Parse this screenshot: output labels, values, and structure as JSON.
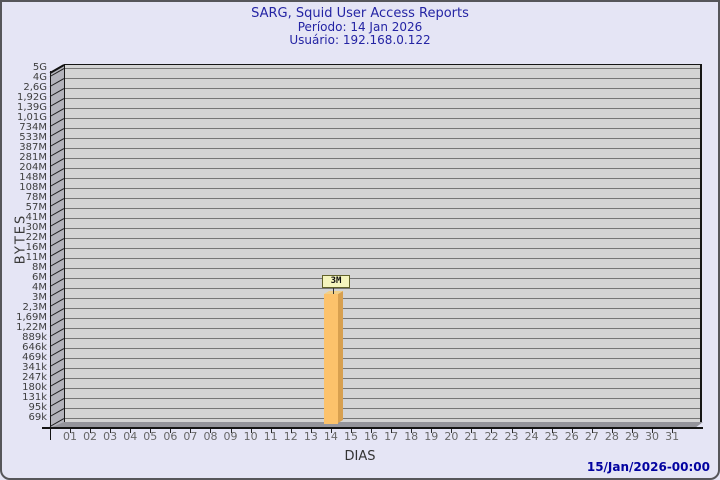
{
  "chart_data": {
    "type": "bar",
    "title": "SARG, Squid User Access Reports",
    "subtitle_period": "Período: 14 Jan 2026",
    "subtitle_user": "Usuário: 192.168.0.122",
    "x_axis_title": "DIAS",
    "y_axis_title": "BYTES",
    "timestamp": "15/Jan/2026-00:00",
    "categories": [
      "01",
      "02",
      "03",
      "04",
      "05",
      "06",
      "07",
      "08",
      "09",
      "10",
      "11",
      "12",
      "13",
      "14",
      "15",
      "16",
      "17",
      "18",
      "19",
      "20",
      "21",
      "22",
      "23",
      "24",
      "25",
      "26",
      "27",
      "28",
      "29",
      "30",
      "31"
    ],
    "y_ticks": [
      "5G",
      "4G",
      "2,6G",
      "1,92G",
      "1,39G",
      "1,01G",
      "734M",
      "533M",
      "387M",
      "281M",
      "204M",
      "148M",
      "108M",
      "78M",
      "57M",
      "41M",
      "30M",
      "22M",
      "16M",
      "11M",
      "8M",
      "6M",
      "4M",
      "3M",
      "2,3M",
      "1,69M",
      "1,22M",
      "889k",
      "646k",
      "469k",
      "341k",
      "247k",
      "180k",
      "131k",
      "95k",
      "69k"
    ],
    "y_scale": "logarithmic-tick-list",
    "grid": "horizontal",
    "legend": "none",
    "bars": [
      {
        "day": "14",
        "value_label": "3M"
      }
    ],
    "colors": {
      "background": "#e5e5f5",
      "plot_background": "#d4d4d4",
      "gridline": "#767676",
      "bar_front": "#fcc26b",
      "bar_side": "#d8a04f",
      "bar_top": "#f1d088",
      "label_box_bg": "#f5f5bd",
      "label_box_border": "#62622a",
      "title_text": "#2424a4",
      "timestamp_text": "#0202a0"
    }
  }
}
